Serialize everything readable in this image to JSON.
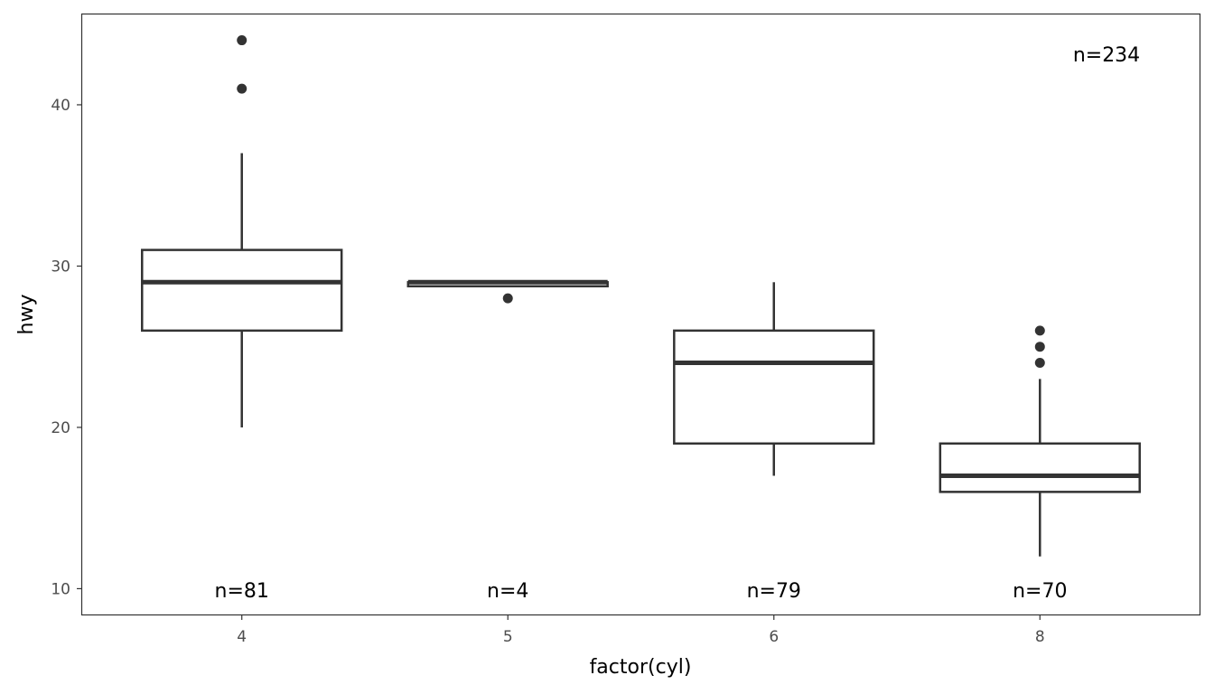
{
  "chart_data": {
    "type": "boxplot",
    "xlabel": "factor(cyl)",
    "ylabel": "hwy",
    "ylim": [
      8.4,
      45.6
    ],
    "yticks": [
      10,
      20,
      30,
      40
    ],
    "categories": [
      "4",
      "5",
      "6",
      "8"
    ],
    "boxes": [
      {
        "category": "4",
        "whisker_low": 20,
        "q1": 26,
        "median": 29,
        "q3": 31,
        "whisker_high": 37,
        "outliers": [
          44,
          41
        ],
        "n_label": "n=81"
      },
      {
        "category": "5",
        "whisker_low": 28.75,
        "q1": 28.75,
        "median": 29,
        "q3": 29,
        "whisker_high": 29,
        "outliers": [
          28
        ],
        "n_label": "n=4"
      },
      {
        "category": "6",
        "whisker_low": 17,
        "q1": 19,
        "median": 24,
        "q3": 26,
        "whisker_high": 29,
        "outliers": [],
        "n_label": "n=79"
      },
      {
        "category": "8",
        "whisker_low": 12,
        "q1": 16,
        "median": 17,
        "q3": 19,
        "whisker_high": 23,
        "outliers": [
          26,
          25,
          24
        ],
        "n_label": "n=70"
      }
    ],
    "annotation": "n=234",
    "grid": false,
    "colors": {
      "box_stroke": "#333333",
      "panel_border": "#333333",
      "tick_text": "#4d4d4d"
    }
  }
}
